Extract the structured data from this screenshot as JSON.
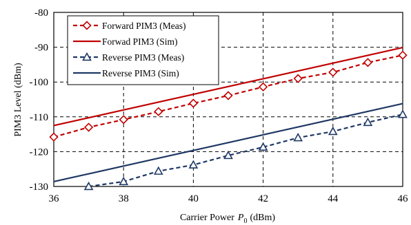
{
  "chart_data": {
    "type": "line",
    "xlabel": "Carrier Power",
    "xlabel_symbol": "P",
    "xlabel_subscript": "0",
    "xlabel_unit": "(dBm)",
    "ylabel": "PIM3 Level  (dBm)",
    "xlim": [
      36,
      46
    ],
    "ylim": [
      -130,
      -80
    ],
    "xticks": [
      "36",
      "38",
      "40",
      "42",
      "44",
      "46"
    ],
    "yticks": [
      "-80",
      "-90",
      "-100",
      "-110",
      "-120",
      "-130"
    ],
    "grid": true,
    "legend_position": "top-left",
    "series": [
      {
        "name": "Forward PIM3 (Meas)",
        "color": "#c00000",
        "dash": true,
        "marker": "diamond",
        "x": [
          36,
          37,
          38,
          39,
          40,
          41,
          42,
          43,
          44,
          45,
          46
        ],
        "y": [
          -115.8,
          -113.0,
          -110.8,
          -108.5,
          -106.1,
          -103.9,
          -101.4,
          -99.0,
          -97.2,
          -94.4,
          -92.3
        ]
      },
      {
        "name": "Forwad PIM3 (Sim)",
        "color": "#c00000",
        "dash": false,
        "marker": "none",
        "x": [
          36,
          46
        ],
        "y": [
          -112.5,
          -90.1
        ]
      },
      {
        "name": "Reverse PIM3 (Meas)",
        "color": "#1f3864",
        "dash": true,
        "marker": "triangle",
        "x": [
          37,
          38,
          39,
          40,
          41,
          42,
          43,
          44,
          45,
          46
        ],
        "y": [
          -130.0,
          -128.6,
          -125.6,
          -123.8,
          -121.1,
          -118.7,
          -116.0,
          -114.2,
          -111.6,
          -109.3
        ]
      },
      {
        "name": "Reverse PIM3 (Sim)",
        "color": "#1f3864",
        "dash": false,
        "marker": "none",
        "x": [
          36,
          46
        ],
        "y": [
          -128.6,
          -106.2
        ]
      }
    ]
  }
}
